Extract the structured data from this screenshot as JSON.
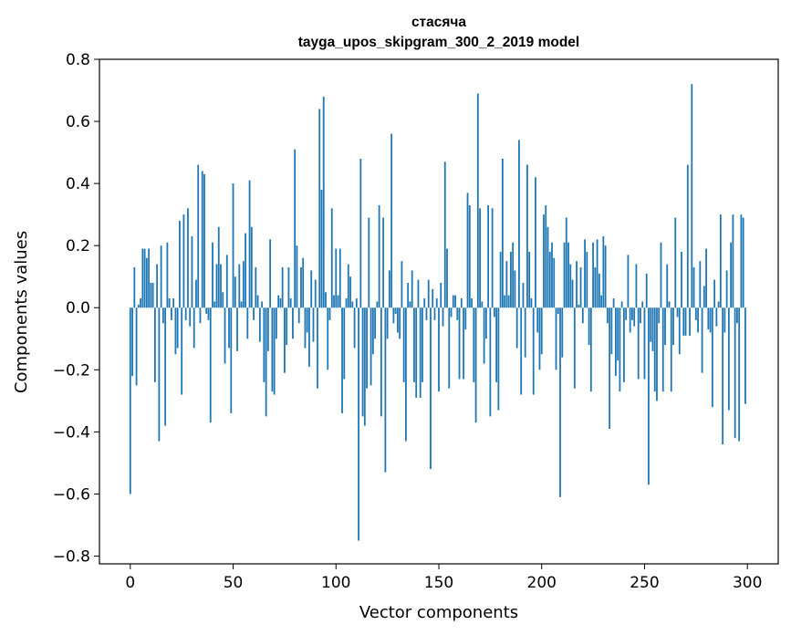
{
  "chart_data": {
    "type": "bar",
    "title": "стасяча",
    "subtitle": "tayga_upos_skipgram_300_2_2019 model",
    "xlabel": "Vector components",
    "ylabel": "Components values",
    "xlim": [
      -15,
      315
    ],
    "ylim": [
      -0.825,
      0.8
    ],
    "xticks": [
      0,
      50,
      100,
      150,
      200,
      250,
      300
    ],
    "yticks": [
      -0.8,
      -0.6,
      -0.4,
      -0.2,
      0.0,
      0.2,
      0.4,
      0.6,
      0.8
    ],
    "ytick_labels": [
      "−0.8",
      "−0.6",
      "−0.4",
      "−0.2",
      "0.0",
      "0.2",
      "0.4",
      "0.6",
      "0.8"
    ],
    "bar_color": "#1f77b4",
    "grid": false,
    "values": [
      -0.6,
      -0.22,
      0.13,
      -0.25,
      0.01,
      0.03,
      0.19,
      0.19,
      0.16,
      0.19,
      0.08,
      0.08,
      -0.24,
      0.14,
      -0.43,
      0.2,
      -0.05,
      -0.38,
      0.21,
      0.03,
      -0.04,
      0.03,
      -0.15,
      -0.13,
      0.28,
      -0.28,
      0.3,
      -0.04,
      0.32,
      -0.06,
      0.23,
      -0.13,
      0.09,
      0.46,
      -0.05,
      0.44,
      0.43,
      -0.02,
      -0.04,
      -0.37,
      0.21,
      0.02,
      0.14,
      0.26,
      0.14,
      0.05,
      -0.18,
      0.17,
      -0.13,
      -0.34,
      0.4,
      0.1,
      -0.14,
      0.14,
      0.02,
      0.15,
      0.24,
      -0.1,
      0.41,
      0.26,
      -0.04,
      0.13,
      0.04,
      -0.11,
      0.02,
      -0.24,
      -0.35,
      -0.14,
      0.22,
      -0.27,
      -0.28,
      -0.1,
      0.04,
      0.03,
      0.13,
      -0.21,
      -0.12,
      0.13,
      0.03,
      -0.1,
      0.51,
      0.2,
      -0.05,
      0.13,
      0.16,
      -0.13,
      -0.08,
      -0.19,
      0.12,
      -0.11,
      0.09,
      -0.26,
      0.64,
      0.38,
      0.68,
      0.05,
      -0.2,
      -0.04,
      0.32,
      0.04,
      0.19,
      0.04,
      0.19,
      -0.34,
      -0.23,
      0.03,
      0.14,
      0.1,
      0.02,
      -0.13,
      0.03,
      -0.75,
      0.48,
      -0.35,
      -0.38,
      -0.26,
      0.29,
      -0.25,
      -0.15,
      -0.1,
      0.02,
      0.33,
      -0.35,
      0.29,
      -0.53,
      -0.1,
      0.12,
      0.56,
      -0.05,
      -0.02,
      -0.08,
      -0.1,
      0.15,
      -0.24,
      -0.43,
      0.08,
      0.02,
      0.12,
      -0.24,
      -0.29,
      0.09,
      -0.29,
      -0.24,
      0.03,
      -0.04,
      0.09,
      -0.52,
      0.06,
      -0.04,
      0.03,
      -0.27,
      0.08,
      -0.06,
      0.47,
      0.19,
      -0.26,
      -0.03,
      0.04,
      0.04,
      -0.04,
      -0.23,
      0.03,
      -0.23,
      -0.07,
      0.37,
      0.33,
      0.03,
      -0.24,
      -0.37,
      0.69,
      0.32,
      0.02,
      -0.18,
      -0.1,
      0.33,
      -0.35,
      0.32,
      -0.03,
      -0.24,
      -0.33,
      0.18,
      0.48,
      0.04,
      0.15,
      0.04,
      0.18,
      0.21,
      0.12,
      -0.13,
      0.54,
      -0.28,
      0.08,
      -0.16,
      0.46,
      0.18,
      0.03,
      -0.28,
      0.42,
      -0.08,
      -0.2,
      -0.15,
      0.3,
      0.33,
      0.26,
      0.18,
      0.21,
      0.16,
      -0.2,
      -0.02,
      -0.61,
      -0.16,
      0.21,
      0.29,
      0.21,
      0.14,
      0.09,
      -0.26,
      0.15,
      0.01,
      0.13,
      -0.05,
      0.22,
      0.18,
      -0.12,
      -0.27,
      0.21,
      0.13,
      0.22,
      0.11,
      0.04,
      0.23,
      0.2,
      -0.05,
      -0.39,
      -0.15,
      0.03,
      -0.22,
      -0.17,
      -0.27,
      0.02,
      -0.24,
      -0.04,
      0.17,
      -0.08,
      -0.04,
      -0.06,
      0.14,
      -0.23,
      -0.05,
      0.02,
      -0.23,
      0.11,
      -0.57,
      -0.11,
      -0.14,
      -0.27,
      -0.3,
      -0.05,
      0.21,
      -0.27,
      -0.12,
      0.14,
      0.02,
      -0.27,
      -0.12,
      0.29,
      -0.03,
      -0.15,
      0.18,
      -0.09,
      -0.09,
      0.46,
      -0.09,
      0.72,
      0.13,
      -0.04,
      -0.08,
      0.15,
      -0.21,
      0.07,
      0.19,
      -0.07,
      -0.08,
      -0.32,
      0.09,
      -0.06,
      0.02,
      0.3,
      -0.44,
      -0.08,
      0.12,
      -0.33,
      0.21,
      0.3,
      -0.42,
      -0.05,
      -0.43,
      0.3,
      0.29,
      -0.31
    ]
  }
}
